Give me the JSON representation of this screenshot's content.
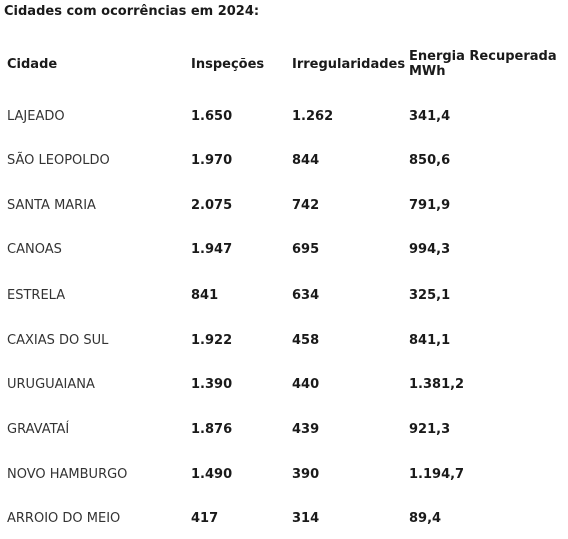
{
  "title": "Cidades com ocorrências em 2024:",
  "headers": {
    "city": "Cidade",
    "inspections": "Inspeções",
    "irregularities": "Irregularidades",
    "energy_line1": "Energia Recuperada",
    "energy_line2": "MWh"
  },
  "rows": [
    {
      "city": "LAJEADO",
      "inspections": "1.650",
      "irregularities": "1.262",
      "energy": "341,4"
    },
    {
      "city": "SÃO LEOPOLDO",
      "inspections": "1.970",
      "irregularities": "844",
      "energy": "850,6"
    },
    {
      "city": "SANTA MARIA",
      "inspections": "2.075",
      "irregularities": "742",
      "energy": "791,9"
    },
    {
      "city": "CANOAS",
      "inspections": "1.947",
      "irregularities": "695",
      "energy": "994,3"
    },
    {
      "city": "ESTRELA",
      "inspections": "841",
      "irregularities": "634",
      "energy": "325,1"
    },
    {
      "city": "CAXIAS DO SUL",
      "inspections": "1.922",
      "irregularities": "458",
      "energy": "841,1"
    },
    {
      "city": "URUGUAIANA",
      "inspections": "1.390",
      "irregularities": "440",
      "energy": "1.381,2"
    },
    {
      "city": "GRAVATAÍ",
      "inspections": "1.876",
      "irregularities": "439",
      "energy": "921,3"
    },
    {
      "city": "NOVO HAMBURGO",
      "inspections": "1.490",
      "irregularities": "390",
      "energy": "1.194,7"
    },
    {
      "city": "ARROIO DO MEIO",
      "inspections": "417",
      "irregularities": "314",
      "energy": "89,4"
    }
  ]
}
